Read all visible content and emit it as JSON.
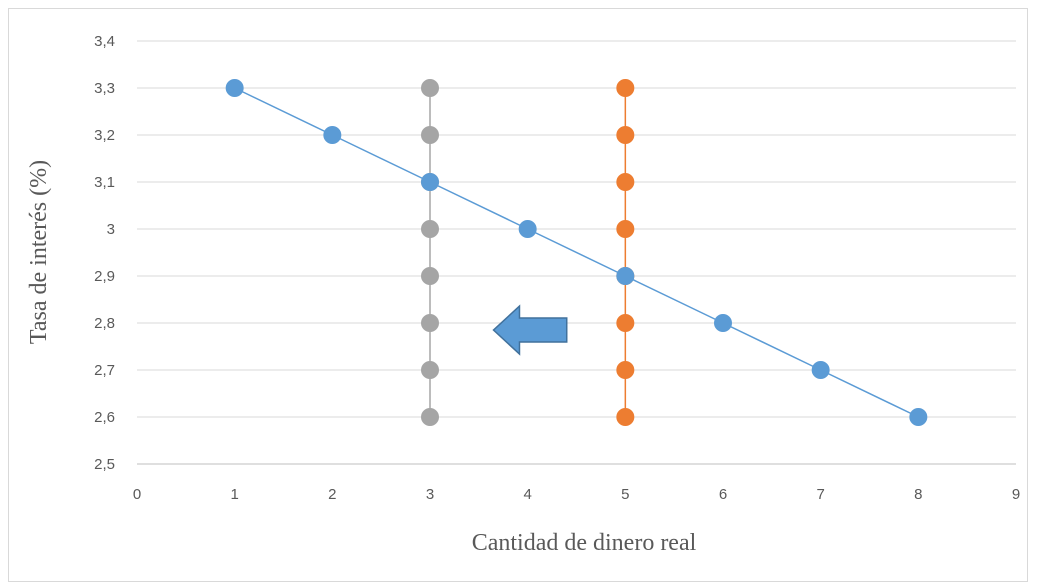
{
  "chart_data": {
    "type": "scatter",
    "title": "",
    "xlabel": "Cantidad de dinero real",
    "ylabel": "Tasa de interés (%)",
    "xlim": [
      0,
      9
    ],
    "ylim": [
      2.5,
      3.4
    ],
    "x_ticks": [
      0,
      1,
      2,
      3,
      4,
      5,
      6,
      7,
      8,
      9
    ],
    "x_tick_labels": [
      "0",
      "1",
      "2",
      "3",
      "4",
      "5",
      "6",
      "7",
      "8",
      "9"
    ],
    "y_ticks": [
      2.5,
      2.6,
      2.7,
      2.8,
      2.9,
      3.0,
      3.1,
      3.2,
      3.3,
      3.4
    ],
    "y_tick_labels": [
      "2,5",
      "2,6",
      "2,7",
      "2,8",
      "2,9",
      "3",
      "3,1",
      "3,2",
      "3,3",
      "3,4"
    ],
    "grid": "horizontal",
    "legend": "none",
    "series": [
      {
        "color": "#a5a5a5",
        "x": [
          3,
          3,
          3,
          3,
          3,
          3,
          3,
          3
        ],
        "y": [
          3.3,
          3.2,
          3.1,
          3.0,
          2.9,
          2.8,
          2.7,
          2.6
        ]
      },
      {
        "color": "#ed7d31",
        "x": [
          5,
          5,
          5,
          5,
          5,
          5,
          5,
          5
        ],
        "y": [
          3.3,
          3.2,
          3.1,
          3.0,
          2.9,
          2.8,
          2.7,
          2.6
        ]
      },
      {
        "color": "#5b9bd5",
        "x": [
          1,
          2,
          3,
          4,
          5,
          6,
          7,
          8
        ],
        "y": [
          3.3,
          3.2,
          3.1,
          3.0,
          2.9,
          2.8,
          2.7,
          2.6
        ]
      }
    ],
    "annotations": [
      {
        "type": "arrow",
        "direction": "left",
        "color": "#5b9bd5",
        "x_from": 4.4,
        "x_to": 3.65,
        "y": 2.785
      }
    ]
  }
}
